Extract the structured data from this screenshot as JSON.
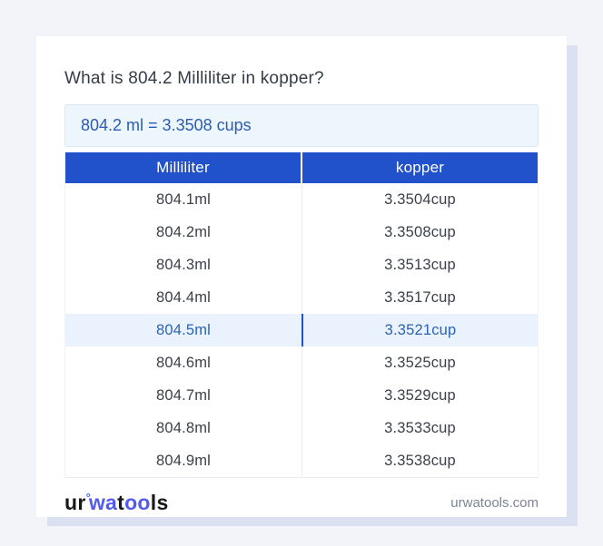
{
  "title": "What is 804.2 Milliliter in kopper?",
  "result": {
    "text": "804.2 ml = 3.3508 cups"
  },
  "table": {
    "headers": [
      "Milliliter",
      "kopper"
    ],
    "rows": [
      {
        "ml": "804.1ml",
        "cup": "3.3504cup",
        "highlighted": false
      },
      {
        "ml": "804.2ml",
        "cup": "3.3508cup",
        "highlighted": false
      },
      {
        "ml": "804.3ml",
        "cup": "3.3513cup",
        "highlighted": false
      },
      {
        "ml": "804.4ml",
        "cup": "3.3517cup",
        "highlighted": false
      },
      {
        "ml": "804.5ml",
        "cup": "3.3521cup",
        "highlighted": true
      },
      {
        "ml": "804.6ml",
        "cup": "3.3525cup",
        "highlighted": false
      },
      {
        "ml": "804.7ml",
        "cup": "3.3529cup",
        "highlighted": false
      },
      {
        "ml": "804.8ml",
        "cup": "3.3533cup",
        "highlighted": false
      },
      {
        "ml": "804.9ml",
        "cup": "3.3538cup",
        "highlighted": false
      }
    ]
  },
  "footer": {
    "logo": {
      "pre": "ur",
      "ring": "°",
      "wa": "wa",
      "t": "t",
      "oo": "oo",
      "end": "ls"
    },
    "site": "urwatools.com"
  },
  "colors": {
    "page_background": "#f2f4fa",
    "card_background": "#ffffff",
    "card_shadow": "#dbe1f0",
    "header_blue": "#2151cb",
    "result_box_background": "#edf5fd",
    "result_text_blue": "#2a5cb4",
    "highlight_row_background": "#eaf2fd",
    "highlight_row_text": "#2b63b4",
    "logo_blue": "#525bee",
    "body_text": "#3b4049"
  }
}
